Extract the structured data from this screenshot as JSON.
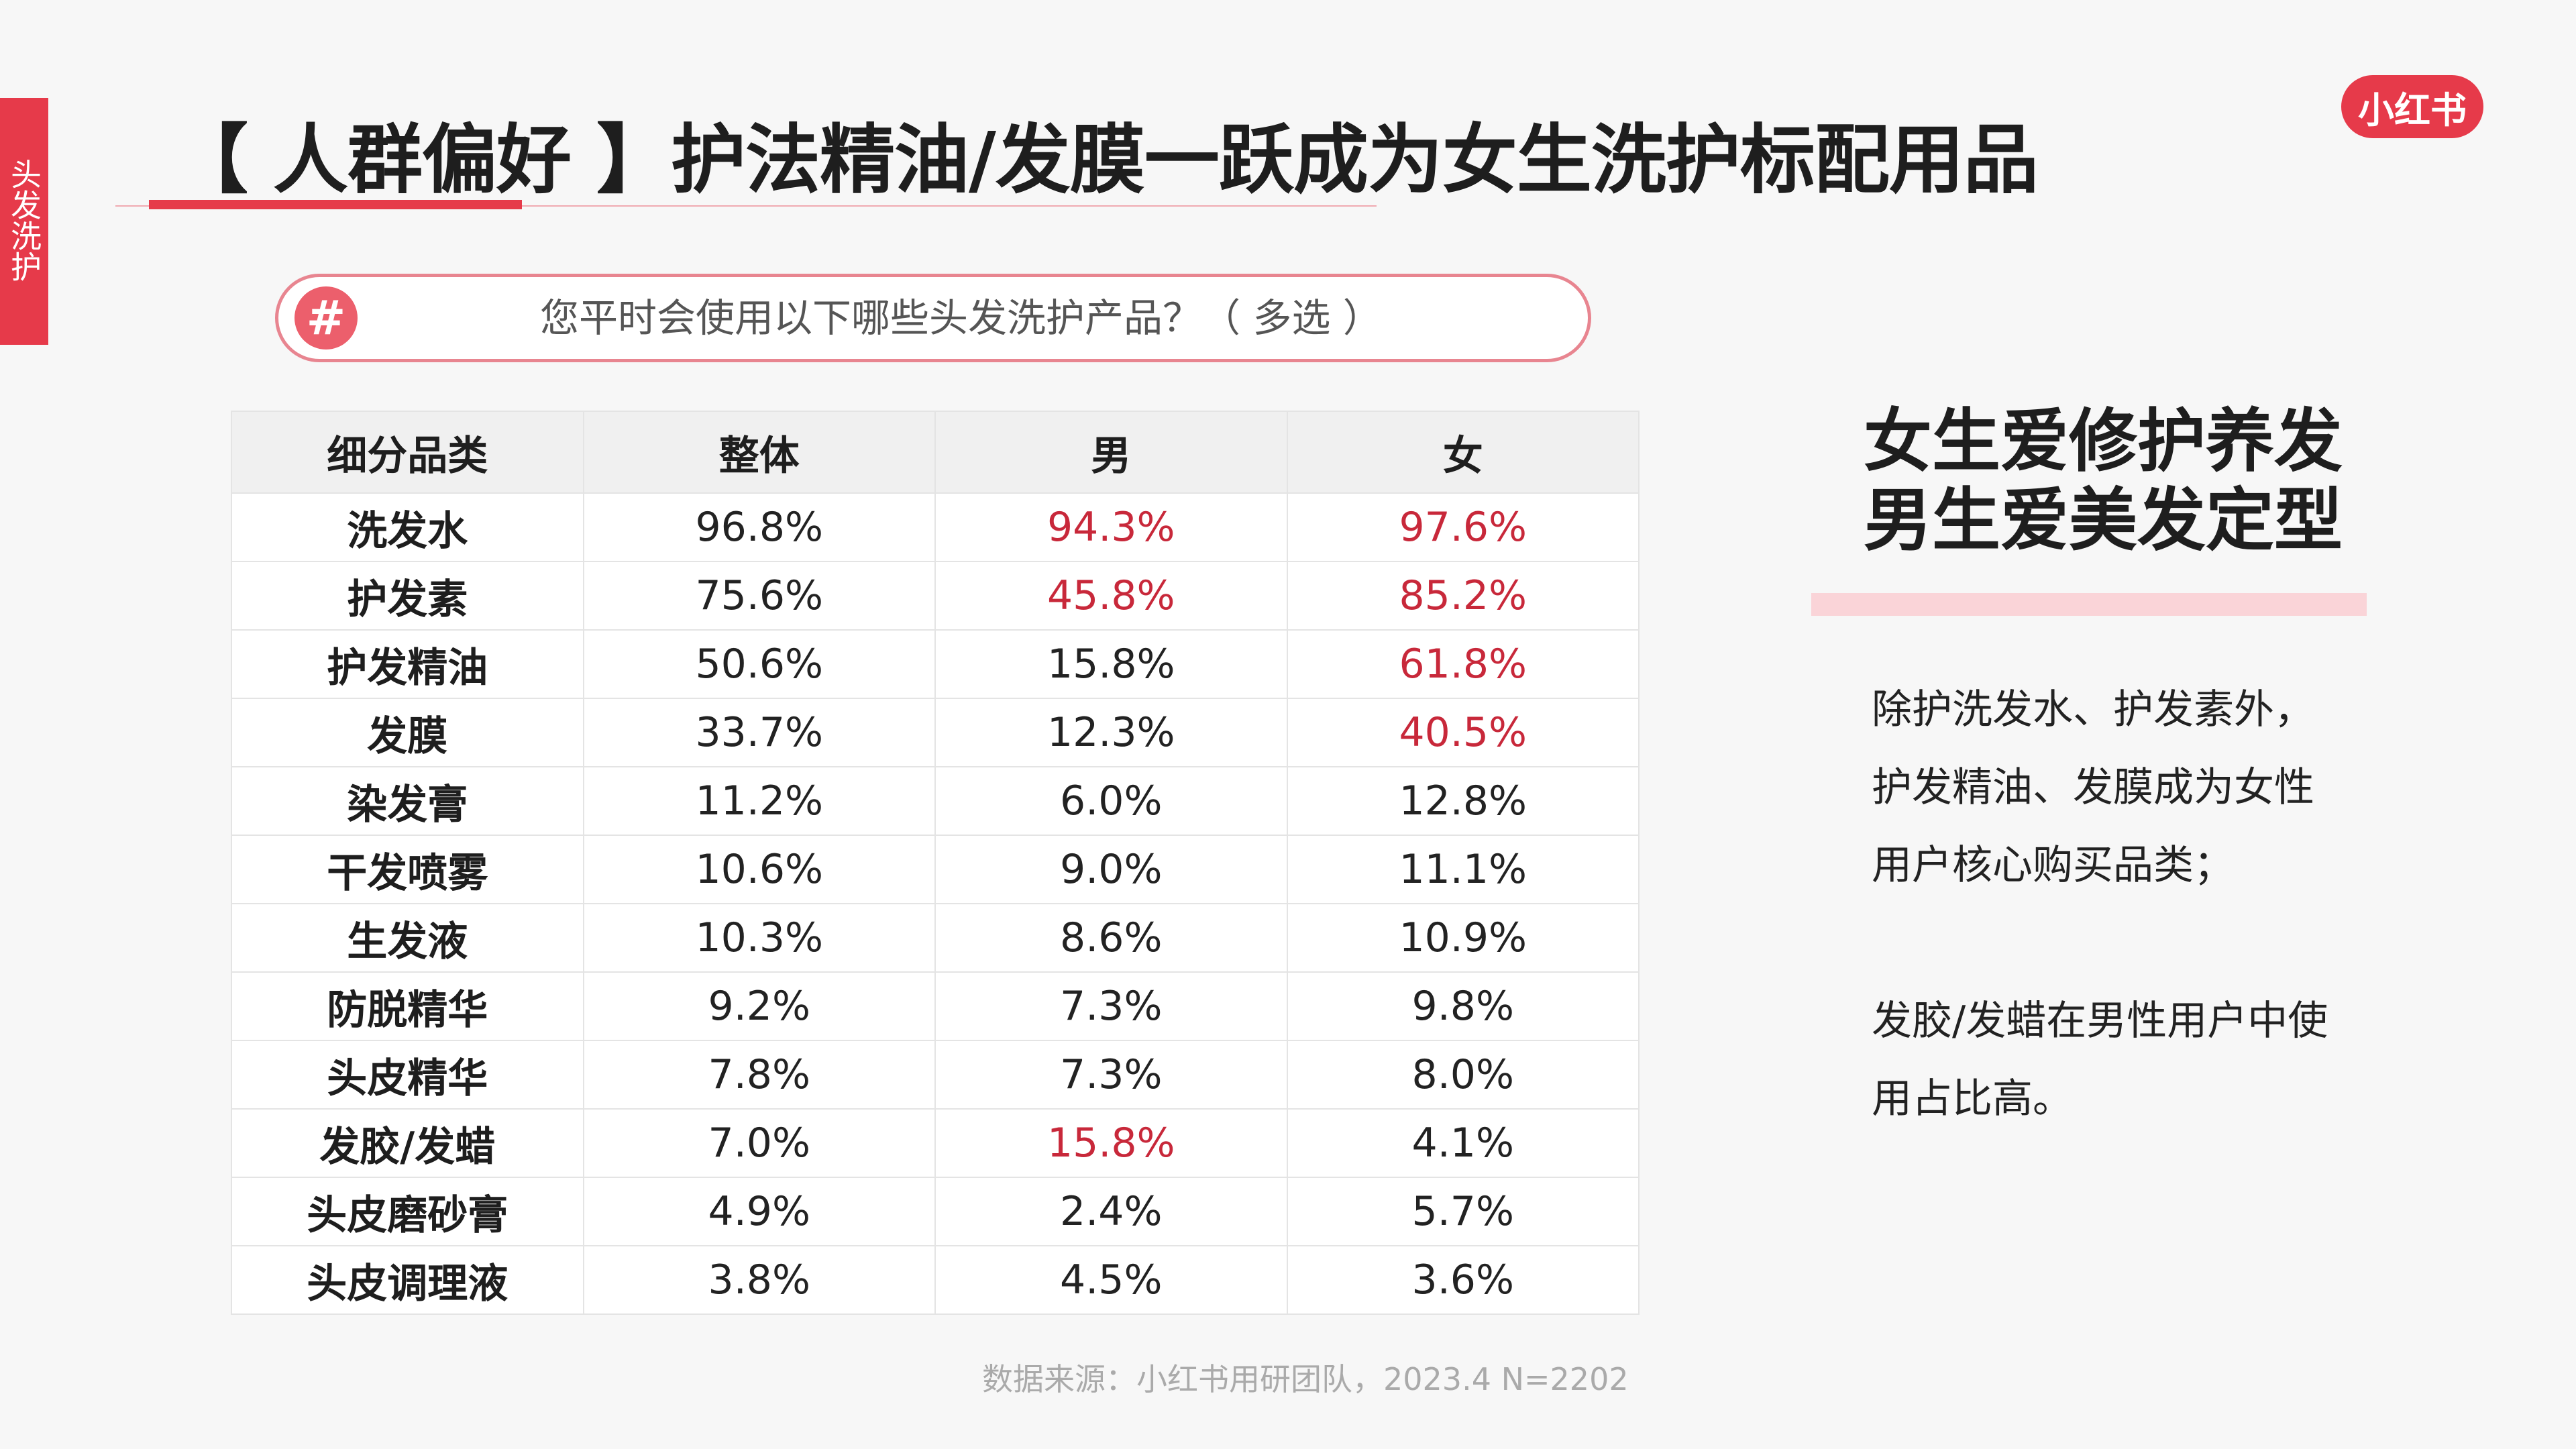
{
  "side_tab": {
    "label": "头发洗护"
  },
  "title": "【 人群偏好 】护法精油/发膜一跃成为女生洗护标配用品",
  "logo": {
    "text": "小红书"
  },
  "question": {
    "icon": "hash-icon",
    "symbol": "#",
    "text": "您平时会使用以下哪些头发洗护产品？（ 多选 ）"
  },
  "table": {
    "headers": [
      "细分品类",
      "整体",
      "男",
      "女"
    ],
    "highlight_color": "#c8283a",
    "rows": [
      {
        "category": "洗发水",
        "overall": "96.8%",
        "male": "94.3%",
        "female": "97.6%",
        "male_hl": true,
        "female_hl": true
      },
      {
        "category": "护发素",
        "overall": "75.6%",
        "male": "45.8%",
        "female": "85.2%",
        "male_hl": true,
        "female_hl": true
      },
      {
        "category": "护发精油",
        "overall": "50.6%",
        "male": "15.8%",
        "female": "61.8%",
        "male_hl": false,
        "female_hl": true
      },
      {
        "category": "发膜",
        "overall": "33.7%",
        "male": "12.3%",
        "female": "40.5%",
        "male_hl": false,
        "female_hl": true
      },
      {
        "category": "染发膏",
        "overall": "11.2%",
        "male": "6.0%",
        "female": "12.8%",
        "male_hl": false,
        "female_hl": false
      },
      {
        "category": "干发喷雾",
        "overall": "10.6%",
        "male": "9.0%",
        "female": "11.1%",
        "male_hl": false,
        "female_hl": false
      },
      {
        "category": "生发液",
        "overall": "10.3%",
        "male": "8.6%",
        "female": "10.9%",
        "male_hl": false,
        "female_hl": false
      },
      {
        "category": "防脱精华",
        "overall": "9.2%",
        "male": "7.3%",
        "female": "9.8%",
        "male_hl": false,
        "female_hl": false
      },
      {
        "category": "头皮精华",
        "overall": "7.8%",
        "male": "7.3%",
        "female": "8.0%",
        "male_hl": false,
        "female_hl": false
      },
      {
        "category": "发胶/发蜡",
        "overall": "7.0%",
        "male": "15.8%",
        "female": "4.1%",
        "male_hl": true,
        "female_hl": false
      },
      {
        "category": "头皮磨砂膏",
        "overall": "4.9%",
        "male": "2.4%",
        "female": "5.7%",
        "male_hl": false,
        "female_hl": false
      },
      {
        "category": "头皮调理液",
        "overall": "3.8%",
        "male": "4.5%",
        "female": "3.6%",
        "male_hl": false,
        "female_hl": false
      }
    ]
  },
  "summary": {
    "line1": "女生爱修护养发",
    "line2": "男生爱美发定型"
  },
  "body": {
    "paragraph1": " 除护洗发水、护发素外，护发精油、发膜成为女性用户核心购买品类；",
    "paragraph2": "发胶/发蜡在男性用户中使用占比高。"
  },
  "source": "数据来源：小红书用研团队，2023.4 N=2202",
  "colors": {
    "accent": "#e63a4a",
    "highlight": "#c8283a"
  }
}
